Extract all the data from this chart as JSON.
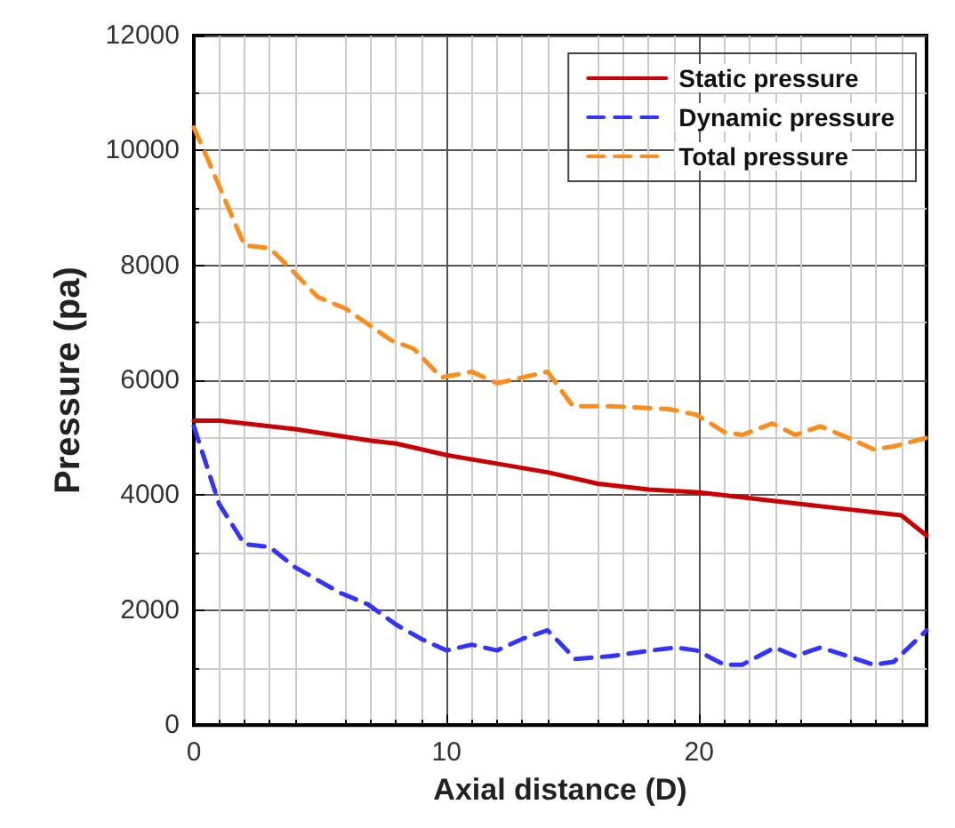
{
  "chart_data": {
    "type": "line",
    "xlabel": "Axial distance (D)",
    "ylabel": "Pressure (pa)",
    "xlim": [
      0,
      29
    ],
    "xticks": [
      0,
      10,
      20
    ],
    "ylim": [
      0,
      12000
    ],
    "yticks": [
      0,
      2000,
      4000,
      6000,
      8000,
      10000,
      12000
    ],
    "grid": true,
    "legend": "top right",
    "marker": "none",
    "series": [
      {
        "name": "Static pressure",
        "color": "#cc0000",
        "line_style": "solid",
        "x": [
          0,
          1,
          4,
          7,
          8,
          10,
          12,
          14,
          16,
          18,
          20,
          22,
          24,
          26,
          28,
          29
        ],
        "values": [
          5300,
          5300,
          5150,
          4950,
          4900,
          4700,
          4550,
          4400,
          4200,
          4100,
          4050,
          3950,
          3850,
          3750,
          3650,
          3300
        ]
      },
      {
        "name": "Dynamic pressure",
        "color": "#3333ff",
        "line_style": "dashed",
        "x": [
          0,
          1,
          2,
          3,
          4,
          5.8,
          6.9,
          8,
          9,
          10,
          11,
          12,
          13,
          14,
          15.1,
          16.5,
          18.1,
          19.1,
          19.9,
          21,
          21.7,
          23,
          23.8,
          24.8,
          25.9,
          26.9,
          27.7,
          29
        ],
        "values": [
          5200,
          3850,
          3150,
          3100,
          2750,
          2300,
          2100,
          1750,
          1500,
          1300,
          1400,
          1300,
          1500,
          1650,
          1150,
          1200,
          1300,
          1350,
          1300,
          1050,
          1050,
          1350,
          1200,
          1350,
          1200,
          1050,
          1100,
          1650
        ]
      },
      {
        "name": "Total pressure",
        "color": "#ff8c1a",
        "line_style": "dashed",
        "x": [
          0,
          0.4,
          2,
          3,
          3.7,
          4.9,
          6,
          7.8,
          8.7,
          9.8,
          11,
          12,
          13,
          14,
          15,
          16.5,
          18.8,
          19.9,
          21,
          21.7,
          22.9,
          23.8,
          24.8,
          25.9,
          26.9,
          27.7,
          29
        ],
        "values": [
          10400,
          10000,
          8350,
          8300,
          8000,
          7450,
          7250,
          6700,
          6550,
          6050,
          6150,
          5950,
          6050,
          6150,
          5550,
          5550,
          5500,
          5400,
          5100,
          5050,
          5250,
          5050,
          5200,
          5000,
          4800,
          4850,
          5000
        ]
      }
    ]
  }
}
